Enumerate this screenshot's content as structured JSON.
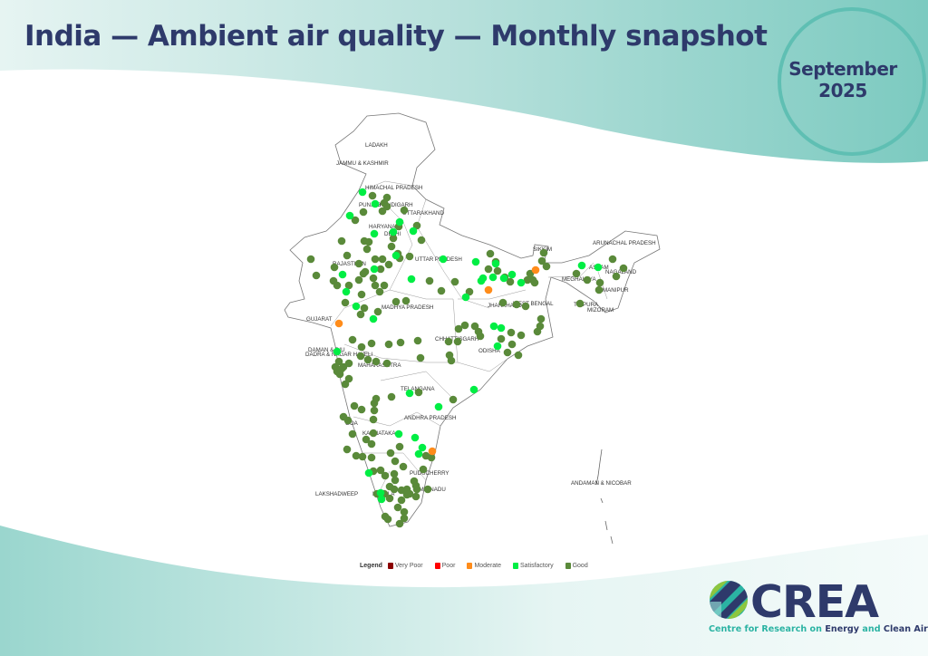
{
  "header": {
    "title": "India — Ambient air quality — Monthly snapshot",
    "month": "September",
    "year": "2025"
  },
  "map": {
    "state_labels": [
      "LADAKH",
      "JAMMU & KASHMIR",
      "HIMACHAL PRADESH",
      "PUNJAB",
      "CHANDIGARH",
      "UTTARAKHAND",
      "HARYANA",
      "DELHI",
      "RAJASTHAN",
      "UTTAR PRADESH",
      "MADHYA PRADESH",
      "GUJARAT",
      "DAMAN & DIU",
      "DADRA & NAGAR HAVELI",
      "MAHARASHTRA",
      "CHHATTISGARH",
      "ODISHA",
      "JHARKHAND",
      "WEST BENGAL",
      "SIKKIM",
      "ARUNACHAL PRADESH",
      "ASSAM",
      "NAGALAND",
      "MEGHALAYA",
      "MANIPUR",
      "TRIPURA",
      "MIZORAM",
      "TELANGANA",
      "ANDHRA PRADESH",
      "GOA",
      "KARNATAKA",
      "PUDUCHERRY",
      "KERALA",
      "TAMIL NADU",
      "LAKSHADWEEP",
      "ANDAMAN & NICOBAR"
    ]
  },
  "legend": {
    "title": "Legend",
    "items": [
      {
        "label": "Very Poor",
        "color": "#8b0000"
      },
      {
        "label": "Poor",
        "color": "#ff0000"
      },
      {
        "label": "Moderate",
        "color": "#ff8c1a"
      },
      {
        "label": "Satisfactory",
        "color": "#00ee44"
      },
      {
        "label": "Good",
        "color": "#5a8a3a"
      }
    ]
  },
  "branding": {
    "logo_text": "CREA",
    "tagline_1": "Centre for Research on ",
    "tagline_2": "Energy",
    "tagline_3": " and ",
    "tagline_4": "Clean Air"
  },
  "colors": {
    "navy": "#2e3a6b",
    "teal": "#7ccac0",
    "accent": "#2bb3a3"
  }
}
